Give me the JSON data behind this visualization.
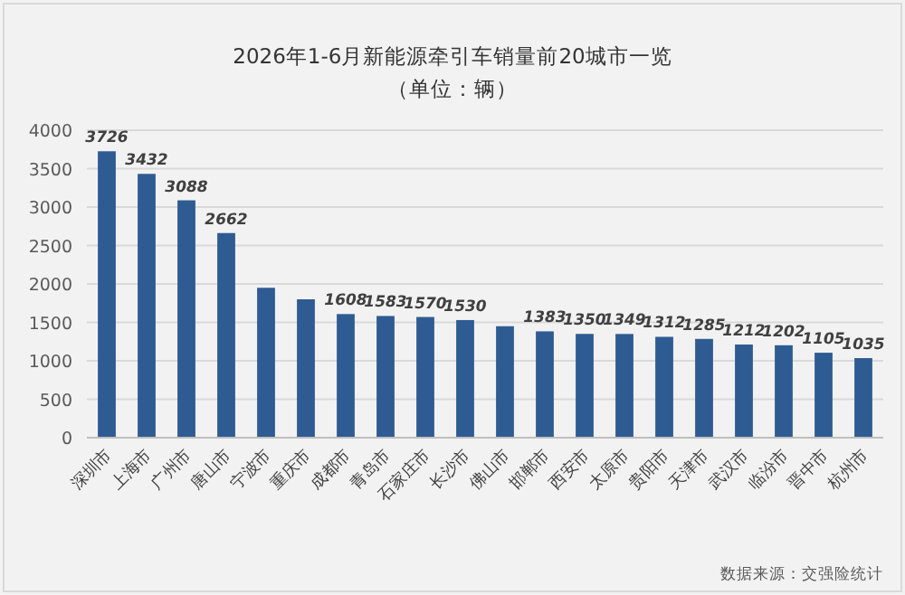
{
  "chart_data": {
    "type": "bar",
    "title": "2026年1-6月新能源牵引车销量前20城市一览",
    "subtitle": "（单位：辆）",
    "categories": [
      "深圳市",
      "上海市",
      "广州市",
      "唐山市",
      "宁波市",
      "重庆市",
      "成都市",
      "青岛市",
      "石家庄市",
      "长沙市",
      "佛山市",
      "邯郸市",
      "西安市",
      "太原市",
      "贵阳市",
      "天津市",
      "武汉市",
      "临汾市",
      "晋中市",
      "杭州市"
    ],
    "values": [
      3726,
      3432,
      3088,
      2662,
      1950,
      1800,
      1608,
      1583,
      1570,
      1530,
      1450,
      1383,
      1350,
      1349,
      1312,
      1285,
      1212,
      1202,
      1105,
      1035
    ],
    "value_labels": [
      "3726",
      "3432",
      "3088",
      "2662",
      null,
      null,
      "1608",
      "1583",
      "1570",
      "1530",
      null,
      "1383",
      "1350",
      "1349",
      "1312",
      "1285",
      "1212",
      "1202",
      "1105",
      "1035"
    ],
    "color": "#2f5b93",
    "ylim": [
      0,
      4000
    ],
    "yticks": [
      0,
      500,
      1000,
      1500,
      2000,
      2500,
      3000,
      3500,
      4000
    ],
    "grid": "y",
    "annotations": [
      "数据来源：交强险统计"
    ]
  }
}
